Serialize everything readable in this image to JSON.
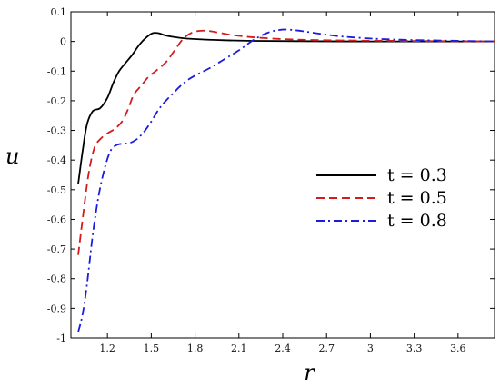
{
  "chart_data": {
    "type": "line",
    "xlabel": "r",
    "ylabel": "u",
    "xlim": [
      0.95,
      3.85
    ],
    "ylim": [
      -1.0,
      0.1
    ],
    "xticks": [
      1.2,
      1.5,
      1.8,
      2.1,
      2.4,
      2.7,
      3,
      3.3,
      3.6
    ],
    "xtick_labels": [
      "1.2",
      "1.5",
      "1.8",
      "2.1",
      "2.4",
      "2.7",
      "3",
      "3.3",
      "3.6"
    ],
    "yticks": [
      0.1,
      0,
      -0.1,
      -0.2,
      -0.3,
      -0.4,
      -0.5,
      -0.6,
      -0.7,
      -0.8,
      -0.9,
      -1
    ],
    "ytick_labels": [
      "0.1",
      "0",
      "-0.1",
      "-0.2",
      "-0.3",
      "-0.4",
      "-0.5",
      "-0.6",
      "-0.7",
      "-0.8",
      "-0.9",
      "-1"
    ],
    "grid": false,
    "legend_position": "center-right",
    "series": [
      {
        "name": "t = 0.3",
        "color": "#000000",
        "dash": "solid",
        "x": [
          1.0,
          1.03,
          1.06,
          1.1,
          1.15,
          1.2,
          1.24,
          1.28,
          1.32,
          1.37,
          1.42,
          1.47,
          1.51,
          1.55,
          1.6,
          1.7,
          1.8,
          2.0,
          2.2,
          2.5,
          3.0,
          3.5,
          3.85
        ],
        "y": [
          -0.48,
          -0.37,
          -0.28,
          -0.235,
          -0.225,
          -0.19,
          -0.14,
          -0.1,
          -0.075,
          -0.045,
          -0.01,
          0.015,
          0.028,
          0.028,
          0.02,
          0.012,
          0.008,
          0.004,
          0.002,
          0.001,
          0.0,
          0.0,
          0.0
        ]
      },
      {
        "name": "t = 0.5",
        "color": "#d41c1c",
        "dash": "dashed",
        "x": [
          1.0,
          1.03,
          1.07,
          1.11,
          1.15,
          1.2,
          1.25,
          1.3,
          1.34,
          1.38,
          1.43,
          1.48,
          1.53,
          1.6,
          1.66,
          1.72,
          1.78,
          1.84,
          1.9,
          1.96,
          2.05,
          2.2,
          2.4,
          2.6,
          2.9,
          3.2,
          3.5,
          3.85
        ],
        "y": [
          -0.72,
          -0.6,
          -0.45,
          -0.36,
          -0.33,
          -0.31,
          -0.295,
          -0.27,
          -0.23,
          -0.18,
          -0.15,
          -0.12,
          -0.1,
          -0.07,
          -0.03,
          0.01,
          0.03,
          0.036,
          0.035,
          0.03,
          0.022,
          0.014,
          0.008,
          0.005,
          0.003,
          0.002,
          0.001,
          0.0
        ]
      },
      {
        "name": "t = 0.8",
        "color": "#1c1cdc",
        "dash": "dashdot",
        "x": [
          1.0,
          1.03,
          1.06,
          1.1,
          1.14,
          1.18,
          1.22,
          1.26,
          1.3,
          1.35,
          1.4,
          1.45,
          1.5,
          1.55,
          1.6,
          1.65,
          1.7,
          1.75,
          1.8,
          1.9,
          2.0,
          2.1,
          2.2,
          2.3,
          2.4,
          2.5,
          2.6,
          2.7,
          2.8,
          3.0,
          3.2,
          3.5,
          3.85
        ],
        "y": [
          -0.98,
          -0.92,
          -0.82,
          -0.65,
          -0.52,
          -0.43,
          -0.37,
          -0.35,
          -0.345,
          -0.343,
          -0.33,
          -0.305,
          -0.27,
          -0.23,
          -0.2,
          -0.175,
          -0.15,
          -0.13,
          -0.115,
          -0.09,
          -0.06,
          -0.03,
          0.005,
          0.03,
          0.04,
          0.037,
          0.03,
          0.023,
          0.017,
          0.01,
          0.006,
          0.003,
          0.0
        ]
      }
    ]
  }
}
